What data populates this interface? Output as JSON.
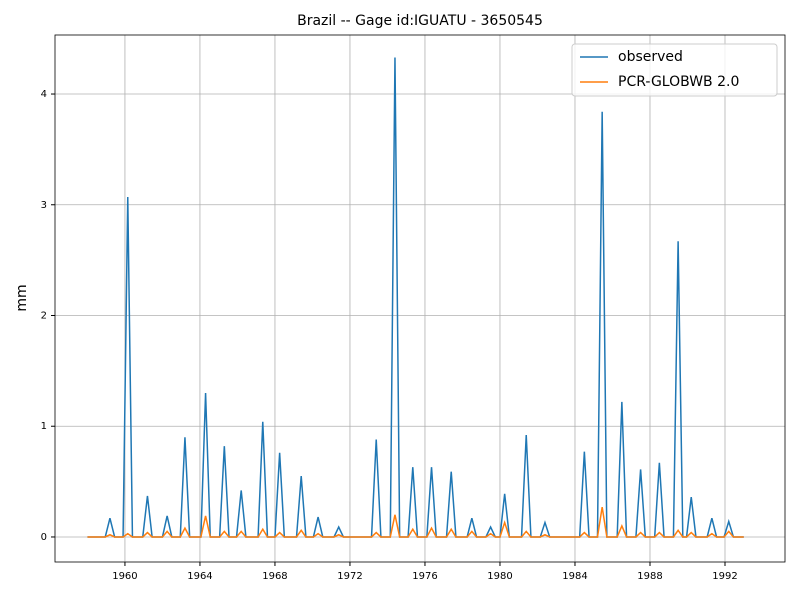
{
  "chart_data": {
    "type": "line",
    "title": "Brazil -- Gage id:IGUATU - 3650545",
    "ylabel": "mm",
    "x": [
      1958.0,
      1958.95,
      1959.2,
      1959.45,
      1959.9,
      1960.15,
      1960.4,
      1960.95,
      1961.2,
      1961.45,
      1962.0,
      1962.25,
      1962.5,
      1962.95,
      1963.2,
      1963.45,
      1964.05,
      1964.3,
      1964.55,
      1965.05,
      1965.3,
      1965.55,
      1965.95,
      1966.2,
      1966.45,
      1967.1,
      1967.35,
      1967.6,
      1968.0,
      1968.25,
      1968.5,
      1969.15,
      1969.4,
      1969.65,
      1970.05,
      1970.3,
      1970.55,
      1971.15,
      1971.4,
      1971.65,
      1973.15,
      1973.4,
      1973.65,
      1974.15,
      1974.4,
      1974.65,
      1975.1,
      1975.35,
      1975.6,
      1976.1,
      1976.35,
      1976.6,
      1977.15,
      1977.4,
      1977.65,
      1978.25,
      1978.5,
      1978.75,
      1979.25,
      1979.5,
      1979.75,
      1980.0,
      1980.25,
      1980.5,
      1981.15,
      1981.4,
      1981.65,
      1982.15,
      1982.4,
      1982.65,
      1984.25,
      1984.5,
      1984.75,
      1985.2,
      1985.45,
      1985.7,
      1986.25,
      1986.5,
      1986.75,
      1987.25,
      1987.5,
      1987.75,
      1988.25,
      1988.5,
      1988.75,
      1989.25,
      1989.5,
      1989.75,
      1989.95,
      1990.2,
      1990.45,
      1991.05,
      1991.3,
      1991.55,
      1991.95,
      1992.2,
      1992.45,
      1993.0
    ],
    "series": [
      {
        "name": "observed",
        "color": "#1f77b4",
        "values": [
          0,
          0,
          0.17,
          0,
          0,
          3.07,
          0,
          0,
          0.37,
          0,
          0,
          0.19,
          0,
          0,
          0.9,
          0,
          0,
          1.3,
          0,
          0,
          0.82,
          0,
          0,
          0.42,
          0,
          0,
          1.04,
          0,
          0,
          0.76,
          0,
          0,
          0.55,
          0,
          0,
          0.18,
          0,
          0,
          0.09,
          0,
          0,
          0.88,
          0,
          0,
          4.33,
          0,
          0,
          0.63,
          0,
          0,
          0.63,
          0,
          0,
          0.59,
          0,
          0,
          0.17,
          0,
          0,
          0.09,
          0,
          0,
          0.39,
          0,
          0,
          0.92,
          0,
          0,
          0.13,
          0,
          0,
          0.77,
          0,
          0,
          3.84,
          0,
          0,
          1.22,
          0,
          0,
          0.61,
          0,
          0,
          0.67,
          0,
          0,
          2.67,
          0,
          0,
          0.36,
          0,
          0,
          0.17,
          0,
          0,
          0.14,
          0,
          0
        ]
      },
      {
        "name": "PCR-GLOBWB 2.0",
        "color": "#ff7f0e",
        "values": [
          0,
          0,
          0.02,
          0,
          0,
          0.03,
          0,
          0,
          0.04,
          0,
          0,
          0.05,
          0,
          0,
          0.08,
          0,
          0,
          0.19,
          0,
          0,
          0.05,
          0,
          0,
          0.05,
          0,
          0,
          0.07,
          0,
          0,
          0.04,
          0,
          0,
          0.06,
          0,
          0,
          0.03,
          0,
          0,
          0.02,
          0,
          0,
          0.04,
          0,
          0,
          0.2,
          0,
          0,
          0.07,
          0,
          0,
          0.08,
          0,
          0,
          0.07,
          0,
          0,
          0.05,
          0,
          0,
          0.03,
          0,
          0,
          0.13,
          0,
          0,
          0.05,
          0,
          0,
          0.02,
          0,
          0,
          0.04,
          0,
          0,
          0.27,
          0,
          0,
          0.1,
          0,
          0,
          0.04,
          0,
          0,
          0.04,
          0,
          0,
          0.06,
          0,
          0,
          0.04,
          0,
          0,
          0.03,
          0,
          0,
          0.05,
          0,
          0
        ]
      }
    ],
    "xlim": [
      1956.27,
      1995.2
    ],
    "xticks": [
      1960,
      1964,
      1968,
      1972,
      1976,
      1980,
      1984,
      1988,
      1992
    ],
    "ylim": [
      -0.226,
      4.533
    ],
    "yticks": [
      0,
      1,
      2,
      3,
      4
    ],
    "grid": true,
    "legend": "upper right"
  }
}
